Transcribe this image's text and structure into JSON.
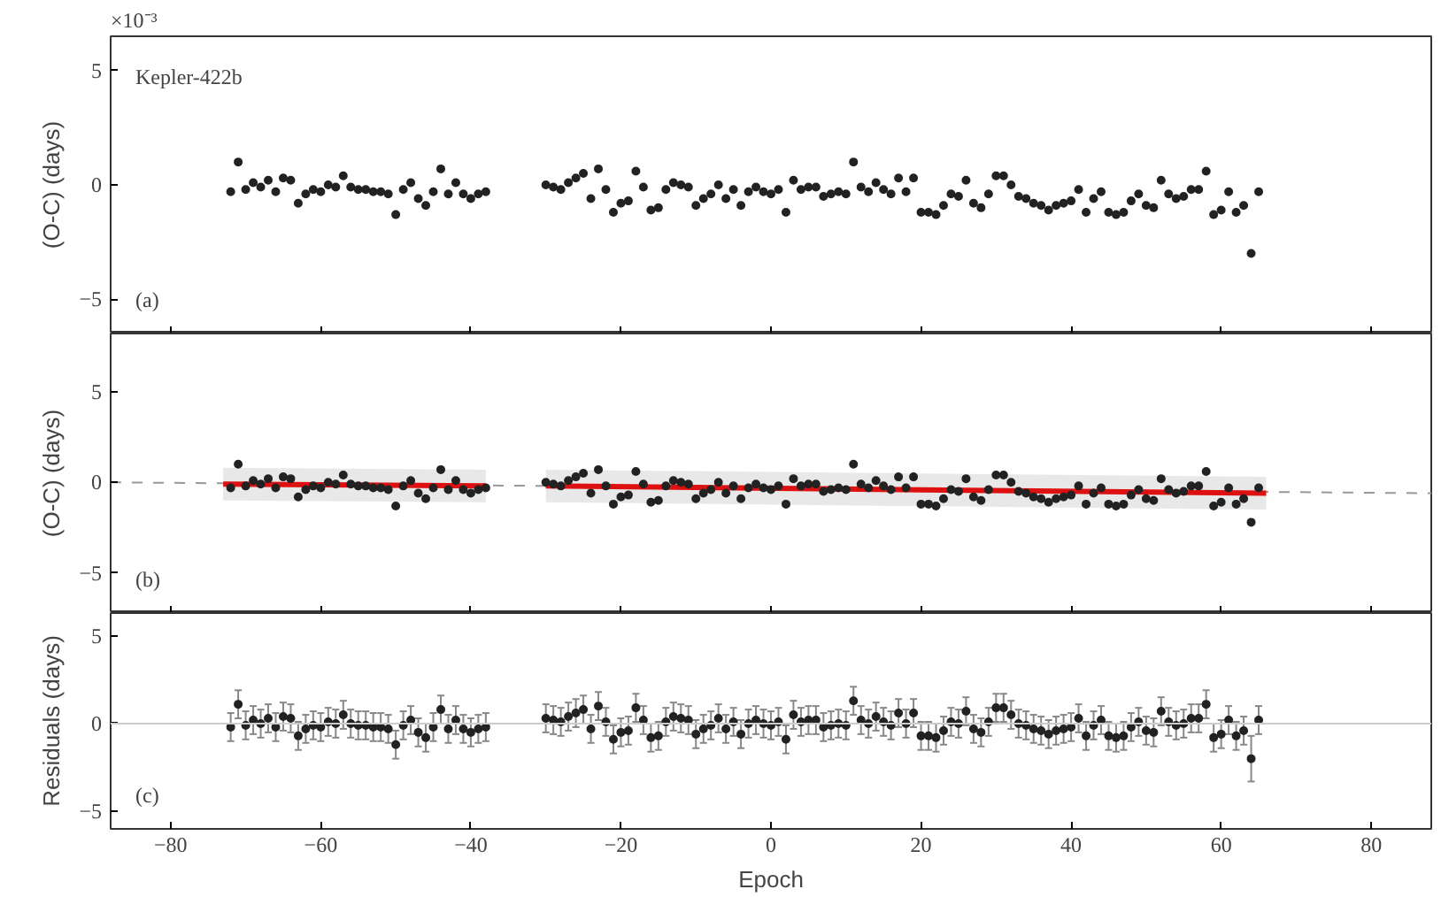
{
  "chart_data": [
    {
      "type": "scatter",
      "ylabel": "(O-C) (days)",
      "annotations": [
        "Kepler-422b",
        "(a)",
        "×10⁻³"
      ],
      "tick_labels": "y",
      "marker": "circle",
      "xlim": [
        -88,
        88
      ],
      "xticks": [
        -80,
        -60,
        -40,
        -20,
        0,
        20,
        40,
        60,
        80
      ],
      "ylim": [
        -6.5,
        6.5
      ],
      "yticks": [
        -5,
        0,
        5
      ],
      "x": [
        -72,
        -71,
        -70,
        -69,
        -68,
        -67,
        -66,
        -65,
        -64,
        -63,
        -62,
        -61,
        -60,
        -59,
        -58,
        -57,
        -56,
        -55,
        -54,
        -53,
        -52,
        -51,
        -50,
        -49,
        -48,
        -47,
        -46,
        -45,
        -44,
        -43,
        -42,
        -41,
        -40,
        -39,
        -38,
        -30,
        -29,
        -28,
        -27,
        -26,
        -25,
        -24,
        -23,
        -22,
        -21,
        -20,
        -19,
        -18,
        -17,
        -16,
        -15,
        -14,
        -13,
        -12,
        -11,
        -10,
        -9,
        -8,
        -7,
        -6,
        -5,
        -4,
        -3,
        -2,
        -1,
        0,
        1,
        2,
        3,
        4,
        5,
        6,
        7,
        8,
        9,
        10,
        11,
        12,
        13,
        14,
        15,
        16,
        17,
        18,
        19,
        20,
        21,
        22,
        23,
        24,
        25,
        26,
        27,
        28,
        29,
        30,
        31,
        32,
        33,
        34,
        35,
        36,
        37,
        38,
        39,
        40,
        41,
        42,
        43,
        44,
        45,
        46,
        47,
        48,
        49,
        50,
        51,
        52,
        53,
        54,
        55,
        56,
        57,
        58,
        59,
        60,
        61,
        62,
        63,
        64,
        65
      ],
      "series": [
        {
          "color": "#222222",
          "values": [
            -0.3,
            1.0,
            -0.2,
            0.1,
            -0.1,
            0.2,
            -0.3,
            0.3,
            0.2,
            -0.8,
            -0.4,
            -0.2,
            -0.3,
            0.0,
            -0.1,
            0.4,
            -0.1,
            -0.2,
            -0.2,
            -0.3,
            -0.3,
            -0.4,
            -1.3,
            -0.2,
            0.1,
            -0.6,
            -0.9,
            -0.3,
            0.7,
            -0.4,
            0.1,
            -0.4,
            -0.6,
            -0.4,
            -0.3,
            0.0,
            -0.1,
            -0.2,
            0.1,
            0.3,
            0.5,
            -0.6,
            0.7,
            -0.2,
            -1.2,
            -0.8,
            -0.7,
            0.6,
            -0.1,
            -1.1,
            -1.0,
            -0.2,
            0.1,
            0.0,
            -0.1,
            -0.9,
            -0.6,
            -0.4,
            0.0,
            -0.6,
            -0.2,
            -0.9,
            -0.3,
            -0.1,
            -0.3,
            -0.4,
            -0.2,
            -1.2,
            0.2,
            -0.2,
            -0.1,
            -0.1,
            -0.5,
            -0.4,
            -0.3,
            -0.4,
            1.0,
            -0.1,
            -0.3,
            0.1,
            -0.2,
            -0.4,
            0.3,
            -0.3,
            0.3,
            -1.2,
            -1.2,
            -1.3,
            -0.9,
            -0.4,
            -0.5,
            0.2,
            -0.8,
            -1.0,
            -0.4,
            0.4,
            0.4,
            0.0,
            -0.5,
            -0.6,
            -0.8,
            -0.9,
            -1.1,
            -0.9,
            -0.8,
            -0.7,
            -0.2,
            -1.2,
            -0.6,
            -0.3,
            -1.2,
            -1.3,
            -1.2,
            -0.7,
            -0.4,
            -0.9,
            -1.0,
            0.2,
            -0.4,
            -0.6,
            -0.5,
            -0.2,
            -0.2,
            0.6,
            -1.3,
            -1.1,
            -0.3,
            -1.2,
            -0.9,
            -3.0,
            -0.3
          ]
        }
      ]
    },
    {
      "type": "scatter",
      "ylabel": "(O-C) (days)",
      "annotations": [
        "(b)"
      ],
      "tick_labels": "y",
      "marker": "circle",
      "xlim": [
        -88,
        88
      ],
      "xticks": [
        -80,
        -60,
        -40,
        -20,
        0,
        20,
        40,
        60,
        80
      ],
      "ylim": [
        -7.2,
        8.2
      ],
      "yticks": [
        -5,
        0,
        5
      ],
      "x": [
        -72,
        -71,
        -70,
        -69,
        -68,
        -67,
        -66,
        -65,
        -64,
        -63,
        -62,
        -61,
        -60,
        -59,
        -58,
        -57,
        -56,
        -55,
        -54,
        -53,
        -52,
        -51,
        -50,
        -49,
        -48,
        -47,
        -46,
        -45,
        -44,
        -43,
        -42,
        -41,
        -40,
        -39,
        -38,
        -30,
        -29,
        -28,
        -27,
        -26,
        -25,
        -24,
        -23,
        -22,
        -21,
        -20,
        -19,
        -18,
        -17,
        -16,
        -15,
        -14,
        -13,
        -12,
        -11,
        -10,
        -9,
        -8,
        -7,
        -6,
        -5,
        -4,
        -3,
        -2,
        -1,
        0,
        1,
        2,
        3,
        4,
        5,
        6,
        7,
        8,
        9,
        10,
        11,
        12,
        13,
        14,
        15,
        16,
        17,
        18,
        19,
        20,
        21,
        22,
        23,
        24,
        25,
        26,
        27,
        28,
        29,
        30,
        31,
        32,
        33,
        34,
        35,
        36,
        37,
        38,
        39,
        40,
        41,
        42,
        43,
        44,
        45,
        46,
        47,
        48,
        49,
        50,
        51,
        52,
        53,
        54,
        55,
        56,
        57,
        58,
        59,
        60,
        61,
        62,
        63,
        64,
        65
      ],
      "series": [
        {
          "type": "line",
          "marker": "none",
          "color": "#999999",
          "line_style": "dashed",
          "x": [
            -88,
            88
          ],
          "values": [
            0.0,
            -0.6
          ]
        },
        {
          "type": "line",
          "marker": "none",
          "color": "#dd1111",
          "x": [
            -73,
            -38,
            -34,
            -30,
            66
          ],
          "values": [
            -0.1,
            -0.2,
            null,
            -0.2,
            -0.6
          ],
          "lower": [
            -1.0,
            -1.1,
            null,
            -1.1,
            -1.5
          ],
          "upper": [
            0.8,
            0.7,
            null,
            0.7,
            0.3
          ]
        },
        {
          "color": "#222222",
          "values": [
            -0.3,
            1.0,
            -0.2,
            0.1,
            -0.1,
            0.2,
            -0.3,
            0.3,
            0.2,
            -0.8,
            -0.4,
            -0.2,
            -0.3,
            0.0,
            -0.1,
            0.4,
            -0.1,
            -0.2,
            -0.2,
            -0.3,
            -0.3,
            -0.4,
            -1.3,
            -0.2,
            0.1,
            -0.6,
            -0.9,
            -0.3,
            0.7,
            -0.4,
            0.1,
            -0.4,
            -0.6,
            -0.4,
            -0.3,
            0.0,
            -0.1,
            -0.2,
            0.1,
            0.3,
            0.5,
            -0.6,
            0.7,
            -0.2,
            -1.2,
            -0.8,
            -0.7,
            0.6,
            -0.1,
            -1.1,
            -1.0,
            -0.2,
            0.1,
            0.0,
            -0.1,
            -0.9,
            -0.6,
            -0.4,
            0.0,
            -0.6,
            -0.2,
            -0.9,
            -0.3,
            -0.1,
            -0.3,
            -0.4,
            -0.2,
            -1.2,
            0.2,
            -0.2,
            -0.1,
            -0.1,
            -0.5,
            -0.4,
            -0.3,
            -0.4,
            1.0,
            -0.1,
            -0.3,
            0.1,
            -0.2,
            -0.4,
            0.3,
            -0.3,
            0.3,
            -1.2,
            -1.2,
            -1.3,
            -0.9,
            -0.4,
            -0.5,
            0.2,
            -0.8,
            -1.0,
            -0.4,
            0.4,
            0.4,
            0.0,
            -0.5,
            -0.6,
            -0.8,
            -0.9,
            -1.1,
            -0.9,
            -0.8,
            -0.7,
            -0.2,
            -1.2,
            -0.6,
            -0.3,
            -1.2,
            -1.3,
            -1.2,
            -0.7,
            -0.4,
            -0.9,
            -1.0,
            0.2,
            -0.4,
            -0.6,
            -0.5,
            -0.2,
            -0.2,
            0.6,
            -1.3,
            -1.1,
            -0.3,
            -1.2,
            -0.9,
            -2.2,
            -0.3
          ]
        }
      ]
    },
    {
      "type": "scatter",
      "xlabel": "Epoch",
      "ylabel": "Residuals (days)",
      "annotations": [
        "(c)"
      ],
      "marker": "circle",
      "xlim": [
        -88,
        88
      ],
      "xticks": [
        -80,
        -60,
        -40,
        -20,
        0,
        20,
        40,
        60,
        80
      ],
      "ylim": [
        -6.0,
        6.3
      ],
      "yticks": [
        -5,
        0,
        5
      ],
      "ref_lines": [
        {
          "axis": "y",
          "value": 0,
          "color": "#cccccc"
        }
      ],
      "x": [
        -72,
        -71,
        -70,
        -69,
        -68,
        -67,
        -66,
        -65,
        -64,
        -63,
        -62,
        -61,
        -60,
        -59,
        -58,
        -57,
        -56,
        -55,
        -54,
        -53,
        -52,
        -51,
        -50,
        -49,
        -48,
        -47,
        -46,
        -45,
        -44,
        -43,
        -42,
        -41,
        -40,
        -39,
        -38,
        -30,
        -29,
        -28,
        -27,
        -26,
        -25,
        -24,
        -23,
        -22,
        -21,
        -20,
        -19,
        -18,
        -17,
        -16,
        -15,
        -14,
        -13,
        -12,
        -11,
        -10,
        -9,
        -8,
        -7,
        -6,
        -5,
        -4,
        -3,
        -2,
        -1,
        0,
        1,
        2,
        3,
        4,
        5,
        6,
        7,
        8,
        9,
        10,
        11,
        12,
        13,
        14,
        15,
        16,
        17,
        18,
        19,
        20,
        21,
        22,
        23,
        24,
        25,
        26,
        27,
        28,
        29,
        30,
        31,
        32,
        33,
        34,
        35,
        36,
        37,
        38,
        39,
        40,
        41,
        42,
        43,
        44,
        45,
        46,
        47,
        48,
        49,
        50,
        51,
        52,
        53,
        54,
        55,
        56,
        57,
        58,
        59,
        60,
        61,
        62,
        63,
        64,
        65
      ],
      "series": [
        {
          "color": "#222222",
          "values": [
            -0.2,
            1.1,
            -0.1,
            0.2,
            0.0,
            0.3,
            -0.2,
            0.4,
            0.3,
            -0.7,
            -0.3,
            -0.1,
            -0.2,
            0.1,
            0.0,
            0.5,
            0.0,
            -0.1,
            -0.1,
            -0.2,
            -0.2,
            -0.3,
            -1.2,
            -0.1,
            0.2,
            -0.5,
            -0.8,
            -0.2,
            0.8,
            -0.3,
            0.2,
            -0.3,
            -0.5,
            -0.3,
            -0.2,
            0.3,
            0.2,
            0.1,
            0.4,
            0.6,
            0.8,
            -0.3,
            1.0,
            0.1,
            -0.9,
            -0.5,
            -0.4,
            0.9,
            0.2,
            -0.8,
            -0.7,
            0.1,
            0.4,
            0.3,
            0.2,
            -0.6,
            -0.3,
            -0.1,
            0.3,
            -0.3,
            0.1,
            -0.6,
            0.0,
            0.2,
            0.0,
            -0.1,
            0.1,
            -0.9,
            0.5,
            0.1,
            0.2,
            0.2,
            -0.2,
            -0.1,
            0.0,
            -0.1,
            1.3,
            0.2,
            0.0,
            0.4,
            0.1,
            -0.1,
            0.6,
            0.0,
            0.6,
            -0.7,
            -0.7,
            -0.8,
            -0.4,
            0.1,
            0.0,
            0.7,
            -0.3,
            -0.5,
            0.1,
            0.9,
            0.9,
            0.5,
            0.0,
            -0.1,
            -0.3,
            -0.4,
            -0.6,
            -0.4,
            -0.3,
            -0.2,
            0.3,
            -0.7,
            -0.1,
            0.2,
            -0.7,
            -0.8,
            -0.7,
            -0.2,
            0.1,
            -0.4,
            -0.5,
            0.7,
            0.1,
            -0.1,
            0.0,
            0.3,
            0.3,
            1.1,
            -0.8,
            -0.6,
            0.2,
            -0.7,
            -0.4,
            -2.0,
            0.2
          ],
          "errors": [
            0.8,
            0.8,
            0.8,
            0.8,
            0.8,
            0.8,
            0.8,
            0.8,
            0.8,
            0.8,
            0.8,
            0.8,
            0.8,
            0.8,
            0.8,
            0.8,
            0.8,
            0.8,
            0.8,
            0.8,
            0.8,
            0.8,
            0.8,
            0.8,
            0.8,
            0.8,
            0.8,
            0.8,
            0.8,
            0.8,
            0.8,
            0.8,
            0.8,
            0.8,
            0.8,
            0.8,
            0.8,
            0.8,
            0.8,
            0.8,
            0.8,
            0.8,
            0.8,
            0.8,
            0.8,
            0.8,
            0.8,
            0.8,
            0.8,
            0.8,
            0.8,
            0.8,
            0.8,
            0.8,
            0.8,
            0.8,
            0.8,
            0.8,
            0.8,
            0.8,
            0.8,
            0.8,
            0.8,
            0.8,
            0.8,
            0.8,
            0.8,
            0.8,
            0.8,
            0.8,
            0.8,
            0.8,
            0.8,
            0.8,
            0.8,
            0.8,
            0.8,
            0.8,
            0.8,
            0.8,
            0.8,
            0.8,
            0.8,
            0.8,
            0.8,
            0.8,
            0.8,
            0.8,
            0.8,
            0.8,
            0.8,
            0.8,
            0.8,
            0.8,
            0.8,
            0.8,
            0.8,
            0.8,
            0.8,
            0.8,
            0.8,
            0.8,
            0.8,
            0.8,
            0.8,
            0.8,
            0.8,
            0.8,
            0.8,
            0.8,
            0.8,
            0.8,
            0.8,
            0.8,
            0.8,
            0.8,
            0.8,
            0.8,
            0.8,
            0.8,
            0.8,
            0.8,
            0.8,
            0.8,
            0.8,
            0.8,
            0.8,
            0.8,
            0.8,
            1.3,
            0.8
          ]
        }
      ]
    }
  ]
}
